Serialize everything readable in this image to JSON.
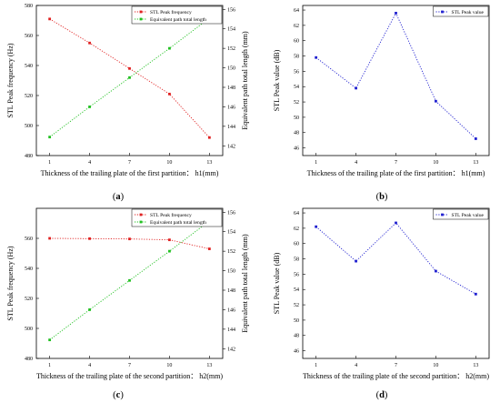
{
  "chart_data": [
    {
      "type": "line",
      "panel_label": "(a)",
      "xlabel": "Thickness of the trailing plate of the first partition： h1(mm)",
      "ylabel": "STL Peak frequency (Hz)",
      "y2label": "Equivalent path total length (mm)",
      "x": [
        1,
        4,
        7,
        10,
        13
      ],
      "x_ticks": [
        "1",
        "4",
        "7",
        "10",
        "13"
      ],
      "ylim": [
        480,
        580
      ],
      "y_ticks": [
        "480",
        "500",
        "520",
        "540",
        "560",
        "580"
      ],
      "y2lim": [
        141,
        156.4
      ],
      "y2_ticks": [
        "142",
        "144",
        "146",
        "148",
        "150",
        "152",
        "154",
        "156"
      ],
      "legend": "top-right",
      "series": [
        {
          "name": "STL Peak frequency",
          "axis": "left",
          "color": "#e02020",
          "values": [
            571,
            555,
            538,
            521,
            492
          ]
        },
        {
          "name": "Equivalent path total length",
          "axis": "right",
          "color": "#20c020",
          "values": [
            142.9,
            146.0,
            149.0,
            152.0,
            155.1
          ]
        }
      ]
    },
    {
      "type": "line",
      "panel_label": "(b)",
      "xlabel": "Thickness of the trailing plate of the first partition： h1(mm)",
      "ylabel": "STL Peak value (dB)",
      "x": [
        1,
        4,
        7,
        10,
        13
      ],
      "x_ticks": [
        "1",
        "4",
        "7",
        "10",
        "13"
      ],
      "ylim": [
        45,
        64.6
      ],
      "y_ticks": [
        "46",
        "48",
        "50",
        "52",
        "54",
        "56",
        "58",
        "60",
        "62",
        "64"
      ],
      "legend": "top-right",
      "series": [
        {
          "name": "STL Peak value",
          "axis": "left",
          "color": "#2020d0",
          "values": [
            57.8,
            53.8,
            63.6,
            52.1,
            47.2
          ]
        }
      ]
    },
    {
      "type": "line",
      "panel_label": "(c)",
      "xlabel": "Thickness of the trailing plate of the second partition： h2(mm)",
      "ylabel": "STL Peak frequency (Hz)",
      "y2label": "Equivalent path total length (mm)",
      "x": [
        1,
        4,
        7,
        10,
        13
      ],
      "x_ticks": [
        "1",
        "4",
        "7",
        "10",
        "13"
      ],
      "ylim": [
        480,
        580
      ],
      "y_ticks": [
        "480",
        "500",
        "520",
        "540",
        "560"
      ],
      "y2lim": [
        141,
        156.4
      ],
      "y2_ticks": [
        "142",
        "144",
        "146",
        "148",
        "150",
        "152",
        "154",
        "156"
      ],
      "legend": "top-right",
      "series": [
        {
          "name": "STL Peak frequency",
          "axis": "left",
          "color": "#e02020",
          "values": [
            560,
            559.8,
            559.6,
            559,
            553
          ]
        },
        {
          "name": "Equivalent path total length",
          "axis": "right",
          "color": "#20c020",
          "values": [
            142.9,
            146.0,
            149.0,
            152.0,
            155.1
          ]
        }
      ]
    },
    {
      "type": "line",
      "panel_label": "(d)",
      "xlabel": "Thickness of the trailing plate of the second partition： h2(mm)",
      "ylabel": "STL Peak value (dB)",
      "x": [
        1,
        4,
        7,
        10,
        13
      ],
      "x_ticks": [
        "1",
        "4",
        "7",
        "10",
        "13"
      ],
      "ylim": [
        45,
        64.6
      ],
      "y_ticks": [
        "46",
        "48",
        "50",
        "52",
        "54",
        "56",
        "58",
        "60",
        "62",
        "64"
      ],
      "legend": "top-right",
      "series": [
        {
          "name": "STL Peak value",
          "axis": "left",
          "color": "#2020d0",
          "values": [
            62.2,
            57.7,
            62.7,
            56.4,
            53.4
          ]
        }
      ]
    }
  ]
}
